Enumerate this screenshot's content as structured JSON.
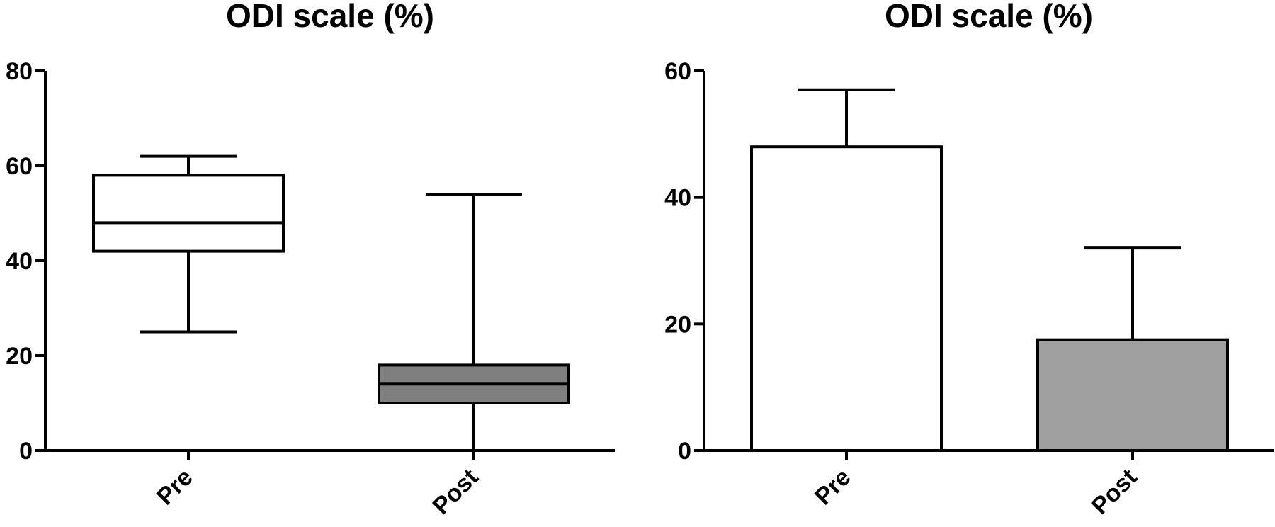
{
  "chart_data": [
    {
      "type": "box",
      "title": "ODI scale (%)",
      "categories": [
        "Pre",
        "Post"
      ],
      "ylim": [
        0,
        80
      ],
      "yticks": [
        0,
        20,
        40,
        60,
        80
      ],
      "series": [
        {
          "category": "Pre",
          "min": 25,
          "q1": 42,
          "median": 48,
          "q3": 58,
          "max": 62,
          "color": "#ffffff"
        },
        {
          "category": "Post",
          "min": 0,
          "q1": 10,
          "median": 14,
          "q3": 18,
          "max": 54,
          "color": "#7f7f7f"
        }
      ],
      "grid": false
    },
    {
      "type": "bar",
      "title": "ODI scale (%)",
      "categories": [
        "Pre",
        "Post"
      ],
      "values": [
        48,
        17.5
      ],
      "error_upper": [
        57,
        32
      ],
      "colors": [
        "#ffffff",
        "#a0a0a0"
      ],
      "ylim": [
        0,
        60
      ],
      "yticks": [
        0,
        20,
        40,
        60
      ],
      "grid": false
    }
  ]
}
